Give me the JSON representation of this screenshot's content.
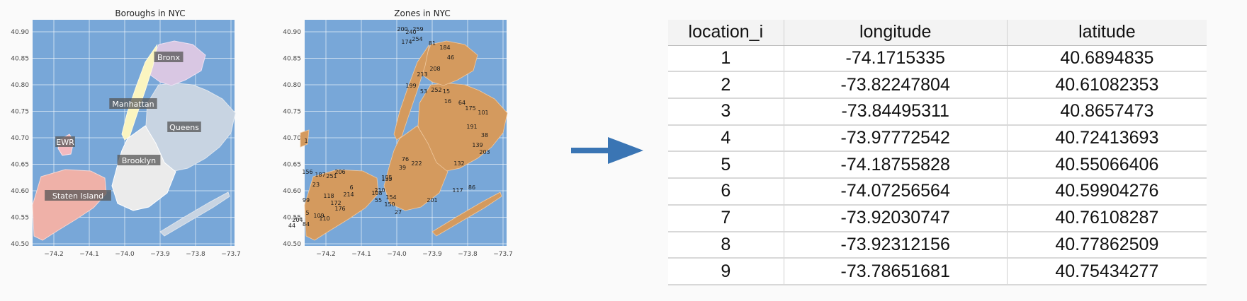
{
  "left_map": {
    "title": "Boroughs in NYC",
    "borough_labels": [
      "Bronx",
      "Manhattan",
      "Queens",
      "EWR",
      "Brooklyn",
      "Staten Island"
    ]
  },
  "right_map": {
    "title": "Zones in NYC",
    "zone_labels": [
      "200",
      "240",
      "259",
      "174",
      "254",
      "81",
      "184",
      "46",
      "208",
      "213",
      "199",
      "53",
      "252",
      "15",
      "16",
      "64",
      "175",
      "101",
      "191",
      "38",
      "203",
      "139",
      "132",
      "86",
      "117",
      "201",
      "27",
      "154",
      "150",
      "55",
      "108",
      "210",
      "155",
      "155",
      "39",
      "222",
      "76",
      "1",
      "156",
      "187",
      "251",
      "206",
      "23",
      "6",
      "118",
      "214",
      "172",
      "176",
      "99",
      "5",
      "204",
      "44",
      "84",
      "109",
      "110"
    ]
  },
  "axes": {
    "x_ticks": [
      "−74.2",
      "−74.1",
      "−74.0",
      "−73.9",
      "−73.8",
      "−73.7"
    ],
    "y_ticks": [
      "40.90",
      "40.85",
      "40.80",
      "40.75",
      "40.70",
      "40.65",
      "40.60",
      "40.55",
      "40.50"
    ]
  },
  "colors": {
    "water": "#78a7d8",
    "grid": "#ffffff",
    "bronx": "#d9c7e3",
    "manhattan": "#fbf5c0",
    "queens": "#c8d4e2",
    "brooklyn": "#ebebeb",
    "ewr": "#f4b9bf",
    "staten_island": "#efb1a8",
    "zones": "#d49a5e",
    "arrow": "#3a75b4"
  },
  "table": {
    "headers": [
      "location_i",
      "longitude",
      "latitude"
    ],
    "rows": [
      [
        "1",
        "-74.1715335",
        "40.6894835"
      ],
      [
        "2",
        "-73.82247804",
        "40.61082353"
      ],
      [
        "3",
        "-73.84495311",
        "40.8657473"
      ],
      [
        "4",
        "-73.97772542",
        "40.72413693"
      ],
      [
        "5",
        "-74.18755828",
        "40.55066406"
      ],
      [
        "6",
        "-74.07256564",
        "40.59904276"
      ],
      [
        "7",
        "-73.92030747",
        "40.76108287"
      ],
      [
        "8",
        "-73.92312156",
        "40.77862509"
      ],
      [
        "9",
        "-73.78651681",
        "40.75434277"
      ]
    ]
  }
}
